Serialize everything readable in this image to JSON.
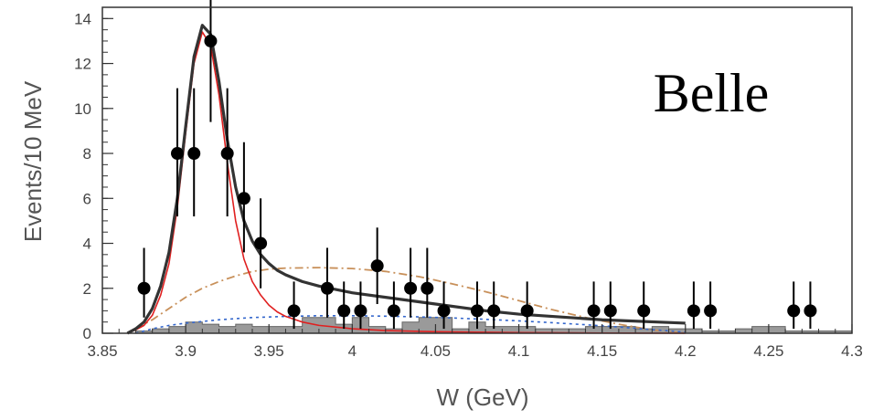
{
  "chart_data": {
    "type": "scatter",
    "xlabel": "W (GeV)",
    "ylabel": "Events/10 MeV",
    "annotation": "Belle",
    "xlim": [
      3.85,
      4.3
    ],
    "ylim": [
      0,
      14.5
    ],
    "x_ticks": [
      3.85,
      3.9,
      3.95,
      4.0,
      4.05,
      4.1,
      4.15,
      4.2,
      4.25,
      4.3
    ],
    "x_tick_labels": [
      "3.85",
      "3.9",
      "3.95",
      "4",
      "4.05",
      "4.1",
      "4.15",
      "4.2",
      "4.25",
      "4.3"
    ],
    "y_ticks": [
      0,
      2,
      4,
      6,
      8,
      10,
      12,
      14
    ],
    "y_tick_labels": [
      "0",
      "2",
      "4",
      "6",
      "8",
      "10",
      "12",
      "14"
    ],
    "grid": false,
    "legend": "none",
    "colors": {
      "data": "#000000",
      "total_fit": "#333333",
      "signal": "#e02020",
      "broad": "#c8905a",
      "background": "#3366cc",
      "hist_fill": "#9a9a9a",
      "axis": "#333333"
    },
    "data_points": [
      {
        "x": 3.875,
        "y": 2,
        "err_lo": 1.3,
        "err_hi": 1.8
      },
      {
        "x": 3.895,
        "y": 8,
        "err_lo": 2.8,
        "err_hi": 2.9
      },
      {
        "x": 3.905,
        "y": 8,
        "err_lo": 2.8,
        "err_hi": 2.9
      },
      {
        "x": 3.915,
        "y": 13,
        "err_lo": 3.6,
        "err_hi": 3.6
      },
      {
        "x": 3.925,
        "y": 8,
        "err_lo": 2.8,
        "err_hi": 2.9
      },
      {
        "x": 3.935,
        "y": 6,
        "err_lo": 2.4,
        "err_hi": 2.5
      },
      {
        "x": 3.945,
        "y": 4,
        "err_lo": 2.0,
        "err_hi": 2.0
      },
      {
        "x": 3.965,
        "y": 1,
        "err_lo": 0.8,
        "err_hi": 1.3
      },
      {
        "x": 3.985,
        "y": 2,
        "err_lo": 1.3,
        "err_hi": 1.8
      },
      {
        "x": 3.995,
        "y": 1,
        "err_lo": 0.8,
        "err_hi": 1.3
      },
      {
        "x": 4.005,
        "y": 1,
        "err_lo": 0.8,
        "err_hi": 1.3
      },
      {
        "x": 4.015,
        "y": 3,
        "err_lo": 1.7,
        "err_hi": 1.7
      },
      {
        "x": 4.025,
        "y": 1,
        "err_lo": 0.8,
        "err_hi": 1.3
      },
      {
        "x": 4.035,
        "y": 2,
        "err_lo": 1.3,
        "err_hi": 1.8
      },
      {
        "x": 4.045,
        "y": 2,
        "err_lo": 1.3,
        "err_hi": 1.8
      },
      {
        "x": 4.055,
        "y": 1,
        "err_lo": 0.8,
        "err_hi": 1.3
      },
      {
        "x": 4.075,
        "y": 1,
        "err_lo": 0.8,
        "err_hi": 1.3
      },
      {
        "x": 4.085,
        "y": 1,
        "err_lo": 0.8,
        "err_hi": 1.3
      },
      {
        "x": 4.105,
        "y": 1,
        "err_lo": 0.8,
        "err_hi": 1.3
      },
      {
        "x": 4.145,
        "y": 1,
        "err_lo": 0.8,
        "err_hi": 1.3
      },
      {
        "x": 4.155,
        "y": 1,
        "err_lo": 0.8,
        "err_hi": 1.3
      },
      {
        "x": 4.175,
        "y": 1,
        "err_lo": 0.8,
        "err_hi": 1.3
      },
      {
        "x": 4.205,
        "y": 1,
        "err_lo": 0.8,
        "err_hi": 1.3
      },
      {
        "x": 4.215,
        "y": 1,
        "err_lo": 0.8,
        "err_hi": 1.3
      },
      {
        "x": 4.265,
        "y": 1,
        "err_lo": 0.8,
        "err_hi": 1.3
      },
      {
        "x": 4.275,
        "y": 1,
        "err_lo": 0.8,
        "err_hi": 1.3
      }
    ],
    "background_histogram": {
      "bin_edges": [
        3.85,
        3.86,
        3.87,
        3.88,
        3.89,
        3.9,
        3.91,
        3.92,
        3.93,
        3.94,
        3.95,
        3.96,
        3.97,
        3.98,
        3.99,
        4.0,
        4.01,
        4.02,
        4.03,
        4.04,
        4.05,
        4.06,
        4.07,
        4.08,
        4.09,
        4.1,
        4.11,
        4.12,
        4.13,
        4.14,
        4.15,
        4.16,
        4.17,
        4.18,
        4.19,
        4.2,
        4.21,
        4.22,
        4.23,
        4.24,
        4.25,
        4.26,
        4.27,
        4.28,
        4.29,
        4.3
      ],
      "values": [
        0,
        0,
        0.1,
        0.2,
        0.3,
        0.5,
        0.4,
        0.3,
        0.4,
        0.3,
        0.3,
        0.3,
        0.7,
        0.7,
        0.4,
        0.7,
        0.3,
        0.2,
        0.5,
        0.7,
        0.7,
        0.2,
        0.5,
        0.3,
        0.3,
        0.3,
        0.2,
        0.2,
        0.2,
        0.3,
        0.3,
        0.3,
        0.2,
        0.3,
        0.2,
        0.2,
        0.1,
        0.1,
        0.2,
        0.3,
        0.3,
        0.1,
        0.1,
        0.1,
        0.1
      ]
    },
    "curves": [
      {
        "id": "total_fit",
        "x": [
          3.865,
          3.87,
          3.875,
          3.88,
          3.885,
          3.89,
          3.895,
          3.9,
          3.905,
          3.91,
          3.915,
          3.92,
          3.925,
          3.93,
          3.935,
          3.94,
          3.945,
          3.95,
          3.955,
          3.96,
          3.97,
          3.98,
          4.0,
          4.02,
          4.05,
          4.08,
          4.1,
          4.15,
          4.2
        ],
        "y": [
          0.0,
          0.2,
          0.5,
          1.1,
          2.1,
          3.6,
          6.0,
          9.2,
          12.3,
          13.7,
          13.3,
          11.2,
          8.6,
          6.5,
          5.0,
          4.1,
          3.5,
          3.1,
          2.8,
          2.6,
          2.3,
          2.1,
          1.8,
          1.6,
          1.3,
          1.0,
          0.85,
          0.6,
          0.45
        ]
      },
      {
        "id": "signal",
        "x": [
          3.865,
          3.87,
          3.875,
          3.88,
          3.885,
          3.89,
          3.895,
          3.9,
          3.905,
          3.91,
          3.915,
          3.92,
          3.925,
          3.93,
          3.935,
          3.94,
          3.945,
          3.95,
          3.955,
          3.96,
          3.97,
          3.98,
          4.0,
          4.02,
          4.05,
          4.1,
          4.15,
          4.2
        ],
        "y": [
          0.0,
          0.15,
          0.35,
          0.8,
          1.7,
          3.1,
          5.6,
          8.9,
          12.0,
          13.4,
          12.8,
          10.6,
          7.6,
          5.0,
          3.3,
          2.3,
          1.7,
          1.25,
          0.95,
          0.75,
          0.5,
          0.35,
          0.2,
          0.12,
          0.07,
          0.03,
          0.01,
          0.0
        ]
      },
      {
        "id": "broad",
        "x": [
          3.87,
          3.88,
          3.89,
          3.9,
          3.91,
          3.92,
          3.93,
          3.94,
          3.95,
          3.96,
          3.98,
          4.0,
          4.02,
          4.04,
          4.06,
          4.08,
          4.1,
          4.12,
          4.14,
          4.16,
          4.18,
          4.2
        ],
        "y": [
          0.2,
          0.6,
          1.1,
          1.6,
          2.0,
          2.3,
          2.55,
          2.75,
          2.85,
          2.9,
          2.92,
          2.88,
          2.75,
          2.52,
          2.2,
          1.85,
          1.45,
          1.05,
          0.7,
          0.4,
          0.15,
          0.0
        ]
      },
      {
        "id": "background",
        "x": [
          3.87,
          3.88,
          3.89,
          3.9,
          3.92,
          3.94,
          3.96,
          3.98,
          4.0,
          4.02,
          4.04,
          4.06,
          4.08,
          4.1,
          4.12,
          4.14,
          4.16,
          4.18,
          4.2
        ],
        "y": [
          0.0,
          0.2,
          0.35,
          0.45,
          0.6,
          0.7,
          0.75,
          0.78,
          0.78,
          0.76,
          0.73,
          0.68,
          0.62,
          0.55,
          0.47,
          0.38,
          0.28,
          0.16,
          0.05
        ]
      }
    ]
  }
}
